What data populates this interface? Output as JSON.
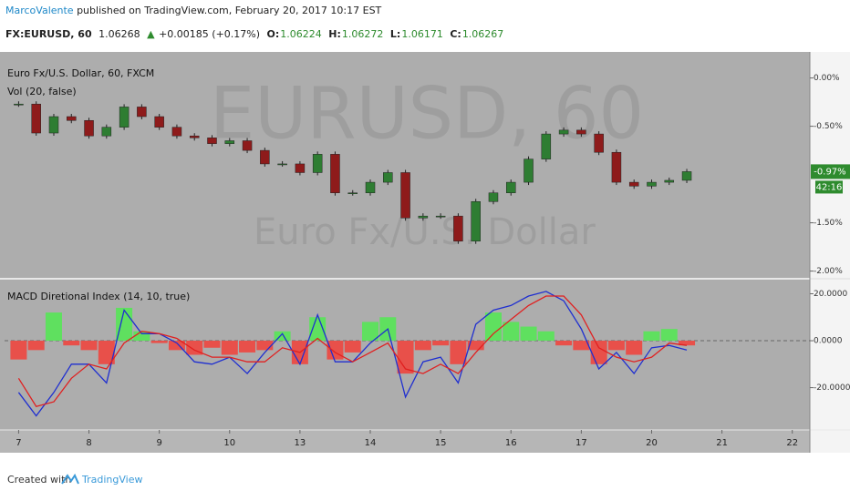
{
  "header": {
    "author": "MarcoValente",
    "published": "published on TradingView.com, February 20, 2017 10:17 EST",
    "symbol": "FX:EURUSD, 60",
    "last": "1.06268",
    "arrow": "▲",
    "change": "+0.00185 (+0.17%)",
    "o_label": "O:",
    "o": "1.06224",
    "h_label": "H:",
    "h": "1.06272",
    "l_label": "L:",
    "l": "1.06171",
    "c_label": "C:",
    "c": "1.06267"
  },
  "watermark": {
    "symbol": "EURUSD, 60",
    "description": "Euro Fx/U.S. Dollar"
  },
  "footer": {
    "created": "Created with",
    "brand": "TradingView"
  },
  "chart_data": [
    {
      "type": "candlestick",
      "title": "Euro Fx/U.S. Dollar, 60, FXCM",
      "subtitle": "Vol (20, false)",
      "x": [
        0,
        0.25,
        0.5,
        0.75,
        1,
        1.25,
        1.5,
        1.75,
        2,
        2.25,
        2.5,
        2.75,
        3,
        3.25,
        3.5,
        3.75,
        4,
        4.25,
        4.5,
        4.75,
        5,
        5.25,
        5.5,
        5.75,
        6,
        6.25,
        6.5,
        6.75,
        7,
        7.25,
        7.5,
        7.75,
        8,
        8.25,
        8.5,
        8.75,
        9,
        9.25,
        9.5
      ],
      "series": [
        {
          "name": "EURUSD",
          "up_color": "#2e7d32",
          "down_color": "#8e1b1b",
          "values": [
            -0.27,
            -0.57,
            -0.4,
            -0.44,
            -0.6,
            -0.51,
            -0.3,
            -0.4,
            -0.51,
            -0.6,
            -0.62,
            -0.68,
            -0.65,
            -0.75,
            -0.89,
            -0.89,
            -0.98,
            -0.79,
            -1.19,
            -1.19,
            -1.08,
            -0.98,
            -1.45,
            -1.43,
            -1.43,
            -1.69,
            -1.28,
            -1.19,
            -1.08,
            -0.84,
            -0.58,
            -0.54,
            -0.58,
            -0.77,
            -1.08,
            -1.12,
            -1.08,
            -1.06,
            -0.97
          ]
        }
      ],
      "last_label": "-0.97%",
      "countdown": "42:16",
      "label_color": "#2e8b2e",
      "xlim": [
        -0.2,
        11.25
      ],
      "ylim": [
        -2.07,
        0.27
      ],
      "yticks": [
        {
          "value": 0,
          "label": "0.00%"
        },
        {
          "value": -0.5,
          "label": "-0.50%"
        },
        {
          "value": -1.5,
          "label": "-1.50%"
        },
        {
          "value": -2,
          "label": "-2.00%"
        }
      ]
    },
    {
      "type": "macd",
      "title": "MACD Diretional Index (14, 10, true)",
      "x": [
        0,
        0.25,
        0.5,
        0.75,
        1,
        1.25,
        1.5,
        1.75,
        2,
        2.25,
        2.5,
        2.75,
        3,
        3.25,
        3.5,
        3.75,
        4,
        4.25,
        4.5,
        4.75,
        5,
        5.25,
        5.5,
        5.75,
        6,
        6.25,
        6.5,
        6.75,
        7,
        7.25,
        7.5,
        7.75,
        8,
        8.25,
        8.5,
        8.75,
        9,
        9.25,
        9.5
      ],
      "series": [
        {
          "name": "MACD",
          "color": "#1f2fd0",
          "values": [
            -22,
            -32,
            -22,
            -10,
            -10,
            -18,
            13,
            3,
            3,
            -1,
            -9,
            -10,
            -7,
            -14,
            -5,
            3,
            -10,
            11,
            -9,
            -9,
            -1,
            5,
            -24,
            -9,
            -7,
            -18,
            7,
            13,
            15,
            19,
            21,
            17,
            5,
            -12,
            -5,
            -14,
            -3,
            -2,
            -4
          ]
        },
        {
          "name": "Signal",
          "color": "#e02020",
          "values": [
            -16,
            -28,
            -26,
            -16,
            -10,
            -12,
            -1,
            4,
            3,
            1,
            -4,
            -7,
            -7,
            -9,
            -9,
            -3,
            -5,
            1,
            -5,
            -9,
            -5,
            -1,
            -12,
            -14,
            -10,
            -14,
            -5,
            3,
            9,
            15,
            19,
            19,
            11,
            -3,
            -7,
            -9,
            -7,
            -1,
            -2
          ]
        },
        {
          "name": "Histogram",
          "positive_color": "#5fe05f",
          "negative_color": "#e8504a",
          "values": [
            -8,
            -4,
            12,
            -2,
            -4,
            -10,
            14,
            4,
            -1,
            -4,
            -6,
            -3,
            -6,
            -5,
            -4,
            4,
            -10,
            10,
            -8,
            -5,
            8,
            10,
            -14,
            -4,
            -2,
            -10,
            -4,
            12,
            8,
            6,
            4,
            -2,
            -4,
            -10,
            -4,
            -6,
            4,
            5,
            -2
          ]
        }
      ],
      "zero_line": true,
      "xlim": [
        -0.2,
        11.25
      ],
      "ylim": [
        -38,
        26
      ],
      "yticks": [
        {
          "value": 20,
          "label": "20.0000"
        },
        {
          "value": 0,
          "label": "0.0000"
        },
        {
          "value": -20,
          "label": "-20.0000"
        }
      ],
      "xticks": [
        {
          "value": 0,
          "label": "7"
        },
        {
          "value": 1,
          "label": "8"
        },
        {
          "value": 2,
          "label": "9"
        },
        {
          "value": 3,
          "label": "10"
        },
        {
          "value": 4,
          "label": "13"
        },
        {
          "value": 5,
          "label": "14"
        },
        {
          "value": 6,
          "label": "15"
        },
        {
          "value": 7,
          "label": "16"
        },
        {
          "value": 8,
          "label": "17"
        },
        {
          "value": 9,
          "label": "20"
        },
        {
          "value": 10,
          "label": "21"
        },
        {
          "value": 11,
          "label": "22"
        }
      ]
    }
  ]
}
